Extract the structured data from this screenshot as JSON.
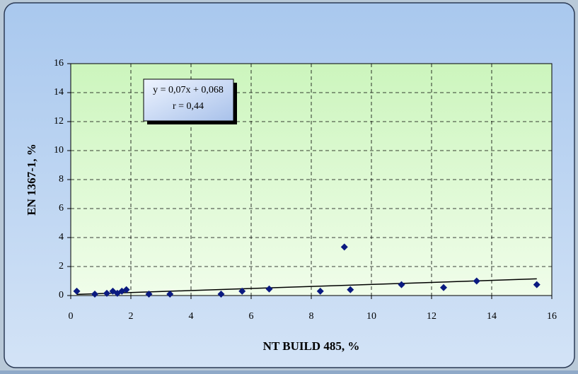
{
  "chart_data": {
    "type": "scatter",
    "xlabel": "NT BUILD 485, %",
    "ylabel": "EN 1367-1, %",
    "annotation": [
      "y = 0,07x + 0,068",
      "r = 0,44"
    ],
    "x": [
      0.2,
      0.8,
      1.2,
      1.4,
      1.55,
      1.7,
      1.85,
      2.6,
      3.3,
      5.0,
      5.7,
      6.6,
      8.3,
      9.1,
      9.3,
      11.0,
      12.4,
      13.5,
      15.5
    ],
    "values": [
      0.3,
      0.1,
      0.15,
      0.3,
      0.15,
      0.3,
      0.4,
      0.1,
      0.1,
      0.1,
      0.3,
      0.45,
      0.3,
      3.35,
      0.4,
      0.75,
      0.55,
      1.0,
      0.75
    ],
    "color": "#0a1a80",
    "trendline": {
      "x": [
        0.2,
        15.5
      ],
      "values": [
        0.08,
        1.15
      ],
      "color": "#000000"
    },
    "xlim": [
      0,
      16
    ],
    "ylim": [
      0,
      16
    ],
    "xticks": [
      0,
      2,
      4,
      6,
      8,
      10,
      12,
      14,
      16
    ],
    "yticks": [
      0,
      2,
      4,
      6,
      8,
      10,
      12,
      14,
      16
    ],
    "grid": true
  }
}
